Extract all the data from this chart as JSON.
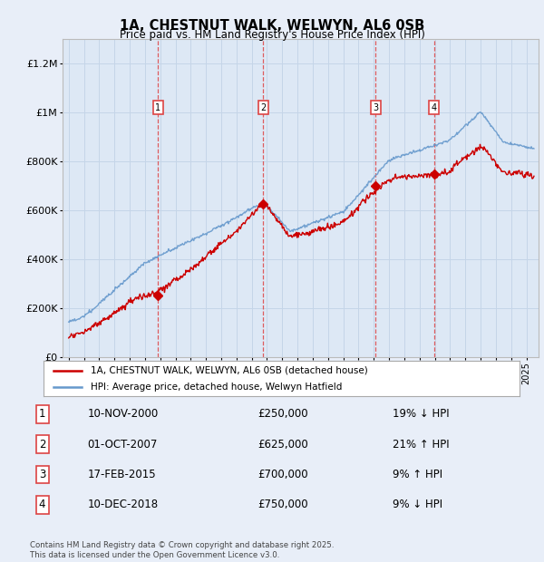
{
  "title": "1A, CHESTNUT WALK, WELWYN, AL6 0SB",
  "subtitle": "Price paid vs. HM Land Registry's House Price Index (HPI)",
  "background_color": "#e8eef8",
  "plot_bg_color": "#dde8f5",
  "xlim_left": 1994.6,
  "xlim_right": 2025.8,
  "ylim": [
    0,
    1300000
  ],
  "yticks": [
    0,
    200000,
    400000,
    600000,
    800000,
    1000000,
    1200000
  ],
  "ytick_labels": [
    "£0",
    "£200K",
    "£400K",
    "£600K",
    "£800K",
    "£1M",
    "£1.2M"
  ],
  "sale_dates": [
    2000.86,
    2007.75,
    2015.13,
    2018.94
  ],
  "sale_prices": [
    250000,
    625000,
    700000,
    750000
  ],
  "sale_labels": [
    "1",
    "2",
    "3",
    "4"
  ],
  "legend_red": "1A, CHESTNUT WALK, WELWYN, AL6 0SB (detached house)",
  "legend_blue": "HPI: Average price, detached house, Welwyn Hatfield",
  "table_data": [
    [
      "1",
      "10-NOV-2000",
      "£250,000",
      "19% ↓ HPI"
    ],
    [
      "2",
      "01-OCT-2007",
      "£625,000",
      "21% ↑ HPI"
    ],
    [
      "3",
      "17-FEB-2015",
      "£700,000",
      "9% ↑ HPI"
    ],
    [
      "4",
      "10-DEC-2018",
      "£750,000",
      "9% ↓ HPI"
    ]
  ],
  "footer": "Contains HM Land Registry data © Crown copyright and database right 2025.\nThis data is licensed under the Open Government Licence v3.0.",
  "red_color": "#cc0000",
  "blue_color": "#6699cc",
  "dashed_red": "#dd4444",
  "label_box_color": "#dd4444",
  "grid_color": "#c5d5e8",
  "border_color": "#aaaaaa"
}
